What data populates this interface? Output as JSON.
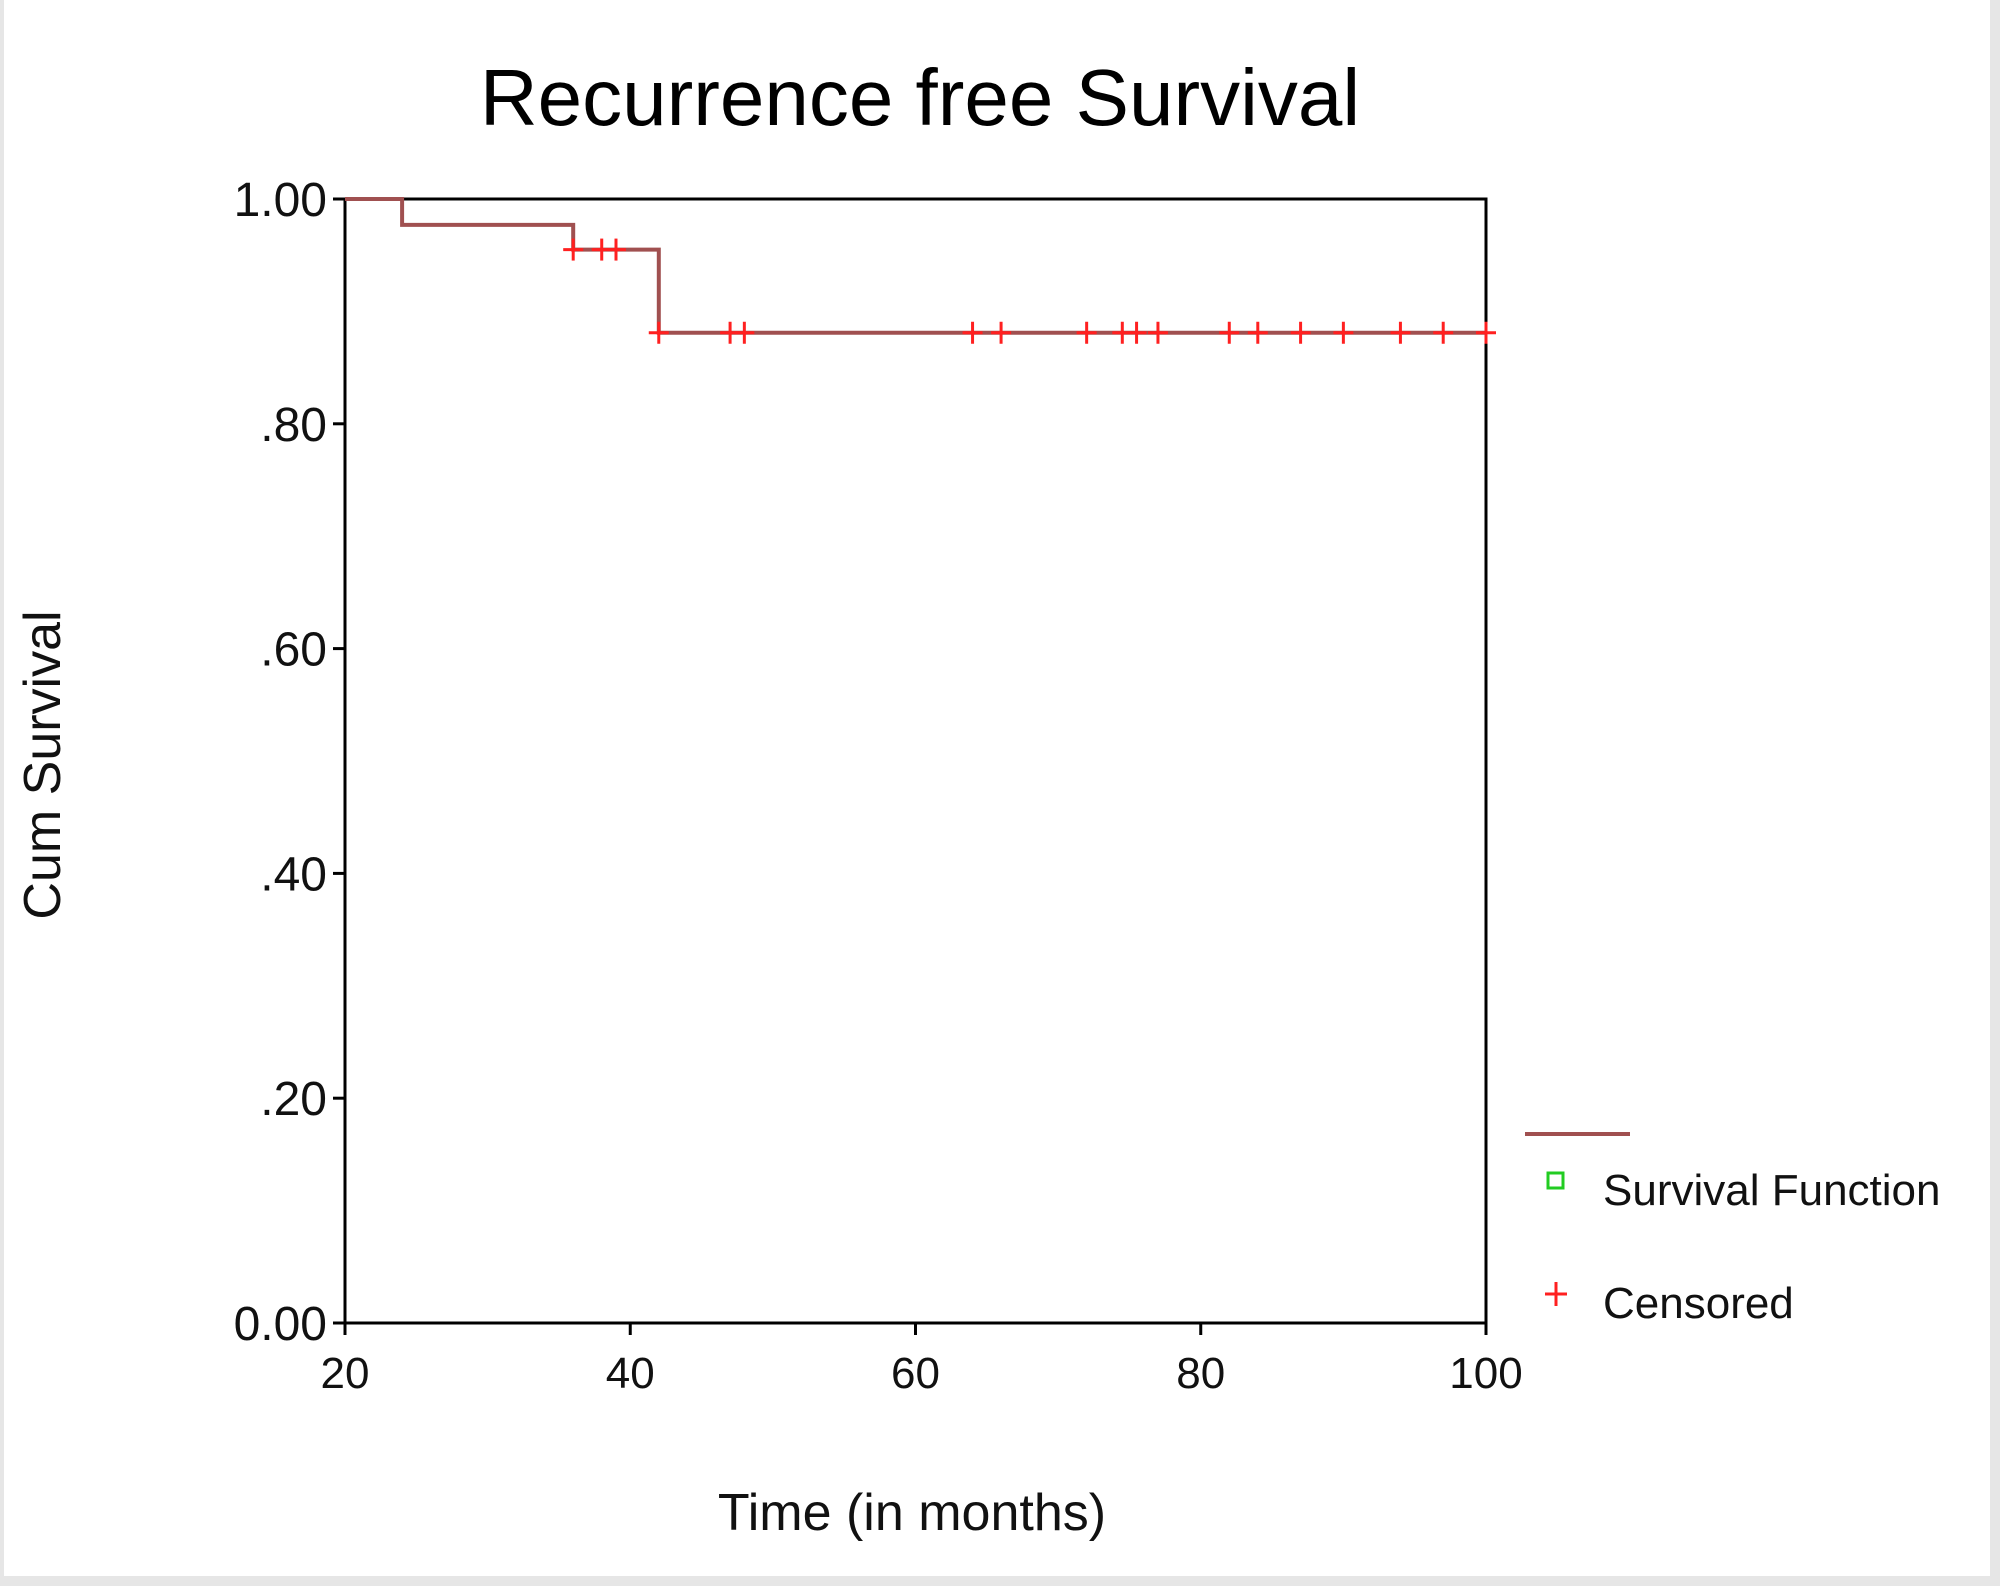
{
  "chart_data": {
    "type": "line",
    "title": "Recurrence free Survival",
    "xlabel": "Time (in months)",
    "ylabel": "Cum Survival",
    "xlim": [
      20,
      100
    ],
    "ylim": [
      0,
      1
    ],
    "x_ticks": [
      20,
      40,
      60,
      80,
      100
    ],
    "x_tick_labels": [
      "20",
      "40",
      "60",
      "80",
      "100"
    ],
    "y_ticks": [
      0,
      0.2,
      0.4,
      0.6,
      0.8,
      1.0
    ],
    "y_tick_labels": [
      "0.00",
      ".20",
      ".40",
      ".60",
      ".80",
      "1.00"
    ],
    "grid": false,
    "legend_position": "bottom-right",
    "series": [
      {
        "name": "Survival Function",
        "kind": "step",
        "color": "#a05050",
        "points": [
          {
            "x": 20,
            "y": 1.0
          },
          {
            "x": 24,
            "y": 1.0
          },
          {
            "x": 24,
            "y": 0.977
          },
          {
            "x": 36,
            "y": 0.977
          },
          {
            "x": 36,
            "y": 0.955
          },
          {
            "x": 42,
            "y": 0.955
          },
          {
            "x": 42,
            "y": 0.881
          },
          {
            "x": 100,
            "y": 0.881
          }
        ]
      },
      {
        "name": "Censored",
        "kind": "marker",
        "color": "#ff2020",
        "points": [
          {
            "x": 36,
            "y": 0.955
          },
          {
            "x": 38,
            "y": 0.955
          },
          {
            "x": 39,
            "y": 0.955
          },
          {
            "x": 42,
            "y": 0.881
          },
          {
            "x": 47,
            "y": 0.881
          },
          {
            "x": 48,
            "y": 0.881
          },
          {
            "x": 64,
            "y": 0.881
          },
          {
            "x": 66,
            "y": 0.881
          },
          {
            "x": 72,
            "y": 0.881
          },
          {
            "x": 74.5,
            "y": 0.881
          },
          {
            "x": 75.5,
            "y": 0.881
          },
          {
            "x": 77,
            "y": 0.881
          },
          {
            "x": 82,
            "y": 0.881
          },
          {
            "x": 84,
            "y": 0.881
          },
          {
            "x": 87,
            "y": 0.881
          },
          {
            "x": 90,
            "y": 0.881
          },
          {
            "x": 94,
            "y": 0.881
          },
          {
            "x": 97,
            "y": 0.881
          },
          {
            "x": 100,
            "y": 0.881
          }
        ]
      }
    ],
    "legend": {
      "entries": [
        {
          "label": "Survival Function",
          "marker": "square",
          "marker_color": "#22cc22",
          "line_color": "#a05050"
        },
        {
          "label": "Censored",
          "marker": "plus",
          "marker_color": "#ff2020"
        }
      ]
    }
  }
}
